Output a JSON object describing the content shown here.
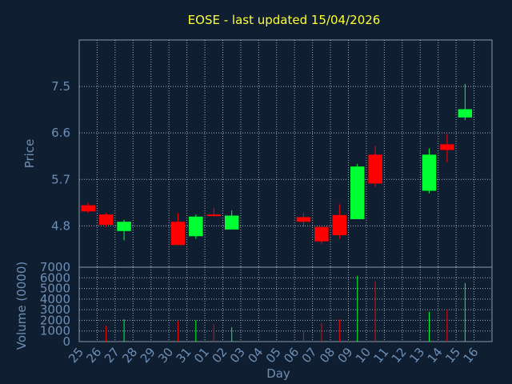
{
  "chart_data": {
    "type": "candlestick",
    "title": "EOSE - last updated 15/04/2026",
    "xlabel": "Day",
    "price_label": "Price",
    "volume_label": "Volume (0000)",
    "days": [
      "25",
      "26",
      "27",
      "28",
      "29",
      "30",
      "31",
      "01",
      "02",
      "03",
      "04",
      "05",
      "06",
      "07",
      "08",
      "09",
      "10",
      "11",
      "12",
      "13",
      "14",
      "15",
      "16"
    ],
    "price_ticks": [
      "4.8",
      "5.7",
      "6.6",
      "7.5"
    ],
    "price_ylim": [
      4.0,
      8.4
    ],
    "volume_ticks": [
      "0",
      "1000",
      "2000",
      "3000",
      "4000",
      "5000",
      "6000",
      "7000"
    ],
    "volume_ylim": [
      0,
      7000
    ],
    "grid": true,
    "up_color": "#00ff33",
    "down_color": "#ff0000",
    "candles": [
      {
        "day": "25",
        "open": 5.2,
        "close": 5.08,
        "high": 5.25,
        "low": 5.05,
        "volume": 0
      },
      {
        "day": "26",
        "open": 5.02,
        "close": 4.82,
        "high": 5.05,
        "low": 4.78,
        "volume": 1500
      },
      {
        "day": "27",
        "open": 4.7,
        "close": 4.88,
        "high": 4.92,
        "low": 4.52,
        "volume": 2100
      },
      {
        "day": "30",
        "open": 4.88,
        "close": 4.43,
        "high": 5.05,
        "low": 4.43,
        "volume": 1950
      },
      {
        "day": "31",
        "open": 4.6,
        "close": 4.98,
        "high": 5.02,
        "low": 4.55,
        "volume": 2000
      },
      {
        "day": "01",
        "open": 5.02,
        "close": 4.99,
        "high": 5.15,
        "low": 4.98,
        "volume": 1650
      },
      {
        "day": "02",
        "open": 4.73,
        "close": 5.0,
        "high": 5.1,
        "low": 4.73,
        "volume": 1350
      },
      {
        "day": "06",
        "open": 4.97,
        "close": 4.88,
        "high": 5.05,
        "low": 4.78,
        "volume": 1000
      },
      {
        "day": "07",
        "open": 4.78,
        "close": 4.5,
        "high": 4.78,
        "low": 4.45,
        "volume": 1750
      },
      {
        "day": "08",
        "open": 5.01,
        "close": 4.62,
        "high": 5.22,
        "low": 4.55,
        "volume": 2100
      },
      {
        "day": "09",
        "open": 4.93,
        "close": 5.95,
        "high": 6.0,
        "low": 4.93,
        "volume": 6200
      },
      {
        "day": "10",
        "open": 6.18,
        "close": 5.62,
        "high": 6.35,
        "low": 5.55,
        "volume": 5700
      },
      {
        "day": "13",
        "open": 5.48,
        "close": 6.18,
        "high": 6.3,
        "low": 5.43,
        "volume": 2800
      },
      {
        "day": "14",
        "open": 6.38,
        "close": 6.27,
        "high": 6.58,
        "low": 6.03,
        "volume": 3000
      },
      {
        "day": "15",
        "open": 6.9,
        "close": 7.06,
        "high": 7.55,
        "low": 6.85,
        "volume": 5500
      }
    ]
  }
}
